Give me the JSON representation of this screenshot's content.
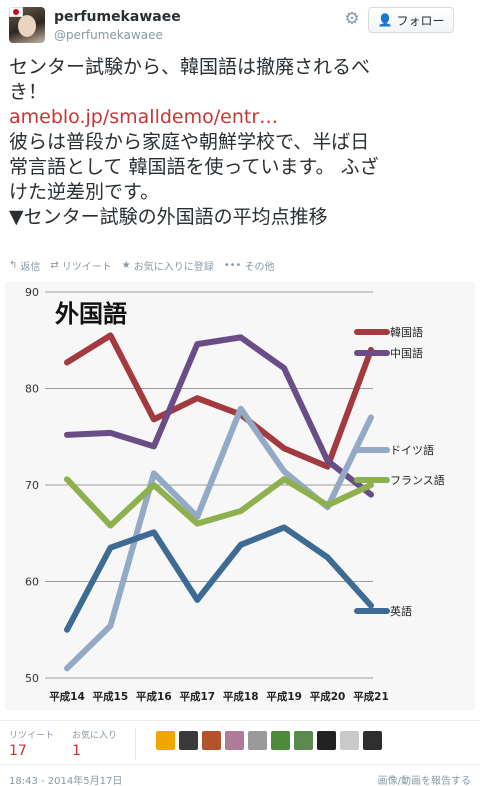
{
  "profile": {
    "display_name": "perfumekawaee",
    "screen_name": "@perfumekawaee"
  },
  "header": {
    "follow_label": "フォロー",
    "follow_icon": "person-plus-icon",
    "settings_icon": "gear-icon"
  },
  "tweet": {
    "line1": "センター試験から、韓国語は撤廃されるべ",
    "line2": "き！",
    "link": "ameblo.jp/smalldemo/entr…",
    "line4": "彼らは普段から家庭や朝鮮学校で、半ば日",
    "line5": "常言語として 韓国語を使っています。 ふざ",
    "line6": "けた逆差別です。",
    "line7": "▼センター試験の外国語の平均点推移"
  },
  "actions": {
    "reply": "返信",
    "retweet": "リツイート",
    "favorite": "お気に入りに登録",
    "more": "その他"
  },
  "stats": {
    "retweets_label": "リツイート",
    "retweets": "17",
    "favorites_label": "お気に入り",
    "favorites": "1"
  },
  "footer": {
    "timestamp": "18:43 - 2014年5月17日",
    "report": "画像/動画を報告する"
  },
  "colors": {
    "link": "#cc3333",
    "korean": "#a23a3f",
    "chinese": "#6a4d86",
    "german": "#93a9c6",
    "french": "#8fb04e",
    "english": "#3e6b93"
  },
  "chart_data": {
    "type": "line",
    "title": "外国語",
    "categories": [
      "平成14",
      "平成15",
      "平成16",
      "平成17",
      "平成18",
      "平成19",
      "平成20",
      "平成21"
    ],
    "ylim": [
      50,
      90
    ],
    "yticks": [
      50,
      60,
      70,
      80,
      90
    ],
    "grid": true,
    "legend": "right",
    "series": [
      {
        "name": "韓国語",
        "color": "#a23a3f",
        "values": [
          82.7,
          85.5,
          76.8,
          79.0,
          77.3,
          73.8,
          71.9,
          84.0
        ]
      },
      {
        "name": "中国語",
        "color": "#6a4d86",
        "values": [
          75.2,
          75.4,
          74.0,
          84.6,
          85.3,
          82.1,
          72.5,
          69.0
        ]
      },
      {
        "name": "ドイツ語",
        "color": "#93a9c6",
        "values": [
          51.0,
          55.4,
          71.2,
          66.7,
          77.9,
          71.4,
          67.7,
          77.0
        ]
      },
      {
        "name": "フランス語",
        "color": "#8fb04e",
        "values": [
          70.6,
          65.8,
          70.0,
          66.0,
          67.3,
          70.6,
          67.9,
          70.0
        ]
      },
      {
        "name": "英語",
        "color": "#3e6b93",
        "values": [
          55.0,
          63.5,
          65.1,
          58.1,
          63.8,
          65.6,
          62.5,
          57.5
        ]
      }
    ]
  }
}
